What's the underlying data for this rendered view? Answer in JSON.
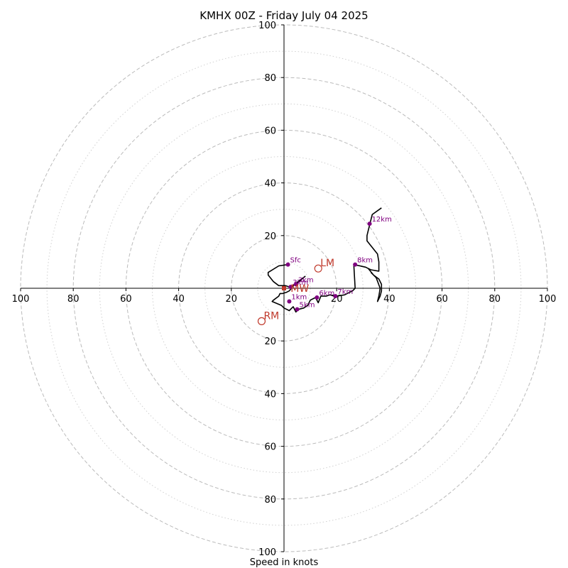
{
  "chart_data": {
    "type": "line",
    "title": "KMHX 00Z - Friday July 04 2025",
    "xlabel": "Speed in knots",
    "ylabel": "",
    "xlim": [
      -100,
      100
    ],
    "ylim": [
      -100,
      100
    ],
    "rings_major": [
      20,
      40,
      60,
      80,
      100
    ],
    "rings_minor": [
      10,
      30,
      50,
      70,
      90
    ],
    "x_tick_labels": [
      "100",
      "80",
      "60",
      "40",
      "20",
      "20",
      "40",
      "60",
      "80",
      "100"
    ],
    "x_tick_values": [
      -100,
      -80,
      -60,
      -40,
      -20,
      20,
      40,
      60,
      80,
      100
    ],
    "y_tick_labels": [
      "100",
      "80",
      "60",
      "40",
      "20",
      "20",
      "40",
      "60",
      "80",
      "100"
    ],
    "y_tick_values": [
      100,
      80,
      60,
      40,
      20,
      -20,
      -40,
      -60,
      -80,
      -100
    ],
    "grid": true,
    "colors": {
      "trace": "#000000",
      "height_marker": "#800080",
      "motion_marker": "#c0392b",
      "grid": "#bbbbbb"
    },
    "series": [
      {
        "points": [
          [
            1.5,
            9
          ],
          [
            -2,
            8.5
          ],
          [
            -6,
            6
          ],
          [
            -6,
            5
          ],
          [
            -4,
            2.5
          ],
          [
            -2,
            1
          ],
          [
            0.5,
            1
          ],
          [
            2,
            0.5
          ],
          [
            3,
            0.8
          ],
          [
            5,
            2
          ],
          [
            8,
            4.5
          ],
          [
            4,
            1.5
          ],
          [
            2,
            -1
          ],
          [
            1,
            -1.5
          ],
          [
            -0.5,
            -2
          ],
          [
            -1.5,
            -2
          ],
          [
            -2,
            -3
          ],
          [
            -4,
            -4.5
          ],
          [
            -4.5,
            -5
          ],
          [
            -1,
            -6.5
          ],
          [
            0,
            -7.5
          ],
          [
            2,
            -8.5
          ],
          [
            3,
            -7.5
          ],
          [
            3.5,
            -7
          ],
          [
            4.5,
            -9
          ],
          [
            5.5,
            -8
          ],
          [
            7.5,
            -7.5
          ],
          [
            9,
            -6.5
          ],
          [
            10,
            -4.5
          ],
          [
            12,
            -3.5
          ],
          [
            13,
            -5.5
          ],
          [
            14,
            -3
          ],
          [
            16,
            -3
          ],
          [
            17.5,
            -2.5
          ],
          [
            19,
            -3
          ],
          [
            20,
            -3
          ],
          [
            23,
            -2.5
          ],
          [
            26,
            -1
          ],
          [
            27,
            0
          ],
          [
            26.5,
            9
          ],
          [
            31,
            8
          ],
          [
            32,
            7.5
          ],
          [
            33,
            7
          ],
          [
            36,
            6.5
          ],
          [
            36,
            10
          ],
          [
            35.5,
            13
          ],
          [
            31.5,
            18
          ],
          [
            31.5,
            20
          ],
          [
            32,
            22
          ],
          [
            33.5,
            28
          ],
          [
            37,
            30.5
          ]
        ],
        "alt_points": [
          [
            32,
            7.5
          ],
          [
            34,
            5
          ],
          [
            36,
            3.5
          ],
          [
            37,
            1.5
          ],
          [
            37,
            -1
          ],
          [
            36.5,
            -3
          ],
          [
            35.5,
            -5
          ],
          [
            36,
            -3
          ],
          [
            36.5,
            0
          ],
          [
            35,
            4
          ],
          [
            33,
            6
          ]
        ]
      }
    ],
    "height_labels": [
      {
        "label": "Sfc",
        "u": 1.5,
        "v": 9
      },
      {
        "label": "3km",
        "u": 4.5,
        "v": 1.5
      },
      {
        "label": "3km",
        "u": 2.5,
        "v": 0.5
      },
      {
        "label": "1km",
        "u": 2,
        "v": -5
      },
      {
        "label": "5km",
        "u": 5,
        "v": -8
      },
      {
        "label": "6km",
        "u": 12.5,
        "v": -3.5
      },
      {
        "label": "7km",
        "u": 19.5,
        "v": -3
      },
      {
        "label": "8km",
        "u": 27,
        "v": 9
      },
      {
        "label": "12km",
        "u": 32.5,
        "v": 24.5
      }
    ],
    "motion_labels": [
      {
        "label": "LM",
        "u": 13,
        "v": 7.5
      },
      {
        "label": "RM",
        "u": -8.5,
        "v": -12.5
      },
      {
        "label": "MW",
        "u": 2.5,
        "v": 0
      }
    ],
    "storm_motion_point": {
      "u": 0,
      "v": 0
    }
  }
}
